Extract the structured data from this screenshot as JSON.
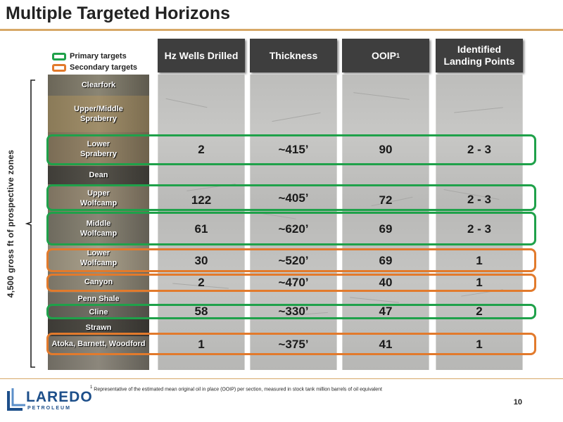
{
  "title": "Multiple Targeted Horizons",
  "legend": {
    "primary_label": "Primary targets",
    "secondary_label": "Secondary targets",
    "primary_color": "#1fa14a",
    "secondary_color": "#e27a2c"
  },
  "columns": {
    "wells": "Hz Wells Drilled",
    "thickness": "Thickness",
    "ooip": "OOIP",
    "ooip_sup": "1",
    "landing_line1": "Identified",
    "landing_line2": "Landing Points"
  },
  "side_label": "4,500 gross ft of prospective zones",
  "formations": [
    {
      "line1": "Clearfork",
      "line2": ""
    },
    {
      "line1": "Upper/Middle",
      "line2": "Spraberry"
    },
    {
      "line1": "Lower",
      "line2": "Spraberry"
    },
    {
      "line1": "Dean",
      "line2": ""
    },
    {
      "line1": "Upper",
      "line2": "Wolfcamp"
    },
    {
      "line1": "Middle",
      "line2": "Wolfcamp"
    },
    {
      "line1": "Lower",
      "line2": "Wolfcamp"
    },
    {
      "line1": "Canyon",
      "line2": ""
    },
    {
      "line1": "Penn Shale",
      "line2": ""
    },
    {
      "line1": "Cline",
      "line2": ""
    },
    {
      "line1": "Strawn",
      "line2": ""
    },
    {
      "line1": "Atoka, Barnett, Woodford",
      "line2": ""
    }
  ],
  "rows": [
    {
      "wells": "2",
      "thickness": "~415’",
      "ooip": "90",
      "landing": "2 - 3"
    },
    {
      "wells": "122",
      "thickness": "~405’",
      "ooip": "72",
      "landing": "2 - 3"
    },
    {
      "wells": "61",
      "thickness": "~620’",
      "ooip": "69",
      "landing": "2 - 3"
    },
    {
      "wells": "30",
      "thickness": "~520’",
      "ooip": "69",
      "landing": "1"
    },
    {
      "wells": "2",
      "thickness": "~470’",
      "ooip": "40",
      "landing": "1"
    },
    {
      "wells": "58",
      "thickness": "~330’",
      "ooip": "47",
      "landing": "2"
    },
    {
      "wells": "1",
      "thickness": "~375’",
      "ooip": "41",
      "landing": "1"
    }
  ],
  "footnote_sup": "1",
  "footnote": "Representative of the estimated mean original oil in place (OOIP) per section, measured in stock tank million barrels of oil equivalent",
  "page_number": "10",
  "logo": {
    "word": "LAREDO",
    "sub": "PETROLEUM",
    "color": "#1d4f8a"
  }
}
